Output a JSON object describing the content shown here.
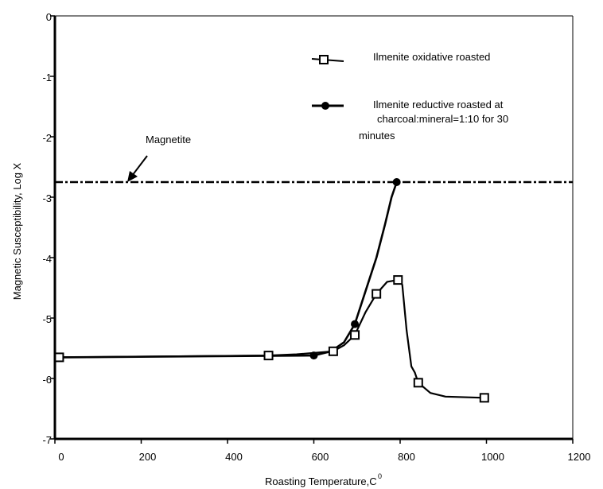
{
  "chart_data": {
    "type": "line",
    "xlabel": "Roasting Temperature,C",
    "xlabel_superscript": "0",
    "ylabel": "Magnetic Susceptibility, Log X",
    "xlim": [
      0,
      1200
    ],
    "ylim": [
      -7,
      0
    ],
    "x_ticks": [
      "0",
      "200",
      "400",
      "600",
      "800",
      "1000",
      "1200"
    ],
    "y_ticks": [
      "0",
      "-1",
      "-2",
      "-3",
      "-4",
      "-5",
      "-6",
      "-7"
    ],
    "grid": false,
    "legend_position": "top-right",
    "series": [
      {
        "name": "Ilmenite oxidative roasted",
        "marker": "square",
        "points": [
          [
            10,
            -5.65
          ],
          [
            495,
            -5.62
          ],
          [
            645,
            -5.55
          ],
          [
            695,
            -5.28
          ],
          [
            745,
            -4.6
          ],
          [
            795,
            -4.37
          ],
          [
            842,
            -6.07
          ],
          [
            995,
            -6.32
          ]
        ],
        "line": [
          [
            10,
            -5.65
          ],
          [
            495,
            -5.62
          ],
          [
            560,
            -5.6
          ],
          [
            645,
            -5.55
          ],
          [
            670,
            -5.45
          ],
          [
            695,
            -5.28
          ],
          [
            720,
            -4.9
          ],
          [
            745,
            -4.6
          ],
          [
            770,
            -4.4
          ],
          [
            795,
            -4.37
          ],
          [
            805,
            -4.45
          ],
          [
            815,
            -5.2
          ],
          [
            826,
            -5.8
          ],
          [
            834,
            -5.9
          ],
          [
            842,
            -6.07
          ],
          [
            870,
            -6.24
          ],
          [
            905,
            -6.3
          ],
          [
            995,
            -6.32
          ]
        ]
      },
      {
        "name": "Ilmenite reductive roasted at charcoal:mineral=1:10 for 30 minutes",
        "legend_lines": [
          "Ilmenite reductive roasted at",
          "charcoal:mineral=1:10 for 30",
          "minutes"
        ],
        "marker": "circle",
        "points": [
          [
            600,
            -5.62
          ],
          [
            695,
            -5.1
          ],
          [
            792,
            -2.75
          ]
        ],
        "line": [
          [
            10,
            -5.65
          ],
          [
            600,
            -5.62
          ],
          [
            640,
            -5.55
          ],
          [
            670,
            -5.4
          ],
          [
            695,
            -5.1
          ],
          [
            720,
            -4.55
          ],
          [
            745,
            -4.0
          ],
          [
            765,
            -3.45
          ],
          [
            780,
            -3.0
          ],
          [
            792,
            -2.75
          ]
        ]
      },
      {
        "name": "Magnetite",
        "style": "dash-dot",
        "y": -2.75,
        "x_range": [
          0,
          1200
        ]
      }
    ],
    "annotations": [
      {
        "text": "Magnetite",
        "points_to": [
          160,
          -2.75
        ]
      }
    ]
  }
}
